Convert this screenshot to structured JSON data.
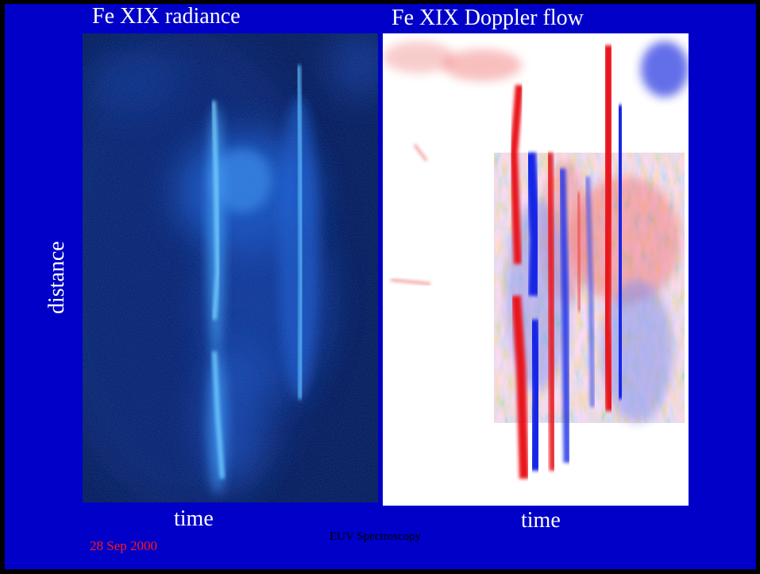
{
  "slide": {
    "background_color": "#0000c8",
    "title_left": "Fe XIX radiance",
    "title_right": "Fe XIX Doppler flow",
    "y_axis_label": "distance",
    "x_axis_label_left": "time",
    "x_axis_label_right": "time",
    "date": "28 Sep 2000",
    "date_color": "#ff1a1a",
    "footer": "EUV Spectroscopy"
  },
  "images": {
    "radiance": {
      "colormap": "dark blue to cyan",
      "base_color": "#05154a",
      "highlight_color": "#6ad2ff"
    },
    "doppler": {
      "colormap": "red-white-blue",
      "background_color": "#ffffff",
      "red_color": "#e8141e",
      "blue_color": "#1428e6"
    }
  }
}
